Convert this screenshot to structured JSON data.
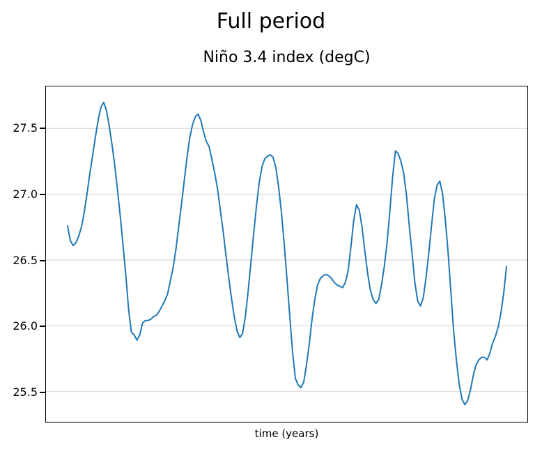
{
  "figure": {
    "suptitle": "Full period",
    "axes_title": "Niño 3.4 index (degC)",
    "xlabel": "time (years)"
  },
  "colors": {
    "line": "#1f77b4",
    "grid": "#dcdcdc",
    "spine": "#000000",
    "bottom_spine": "#7f7f7f",
    "background": "#ffffff"
  },
  "chart_data": {
    "type": "line",
    "title": "Full period",
    "subtitle": "Niño 3.4 index (degC)",
    "xlabel": "time (years)",
    "ylabel": "",
    "y_ticks": [
      25.5,
      26.0,
      26.5,
      27.0,
      27.5
    ],
    "y_tick_labels": [
      "25.5",
      "26.0",
      "26.5",
      "27.0",
      "27.5"
    ],
    "x_tick_labels": [],
    "ylim": [
      25.27,
      27.82
    ],
    "grid": "horizontal-only",
    "legend": "none",
    "x_start_frac": 0.0447,
    "x_end_frac": 0.9567,
    "series": [
      {
        "name": "Niño 3.4 index (degC)",
        "color": "#1f77b4",
        "values": [
          26.76,
          26.65,
          26.61,
          26.63,
          26.68,
          26.75,
          26.86,
          27.0,
          27.15,
          27.29,
          27.43,
          27.56,
          27.66,
          27.7,
          27.64,
          27.52,
          27.38,
          27.22,
          27.03,
          26.83,
          26.61,
          26.38,
          26.12,
          25.95,
          25.93,
          25.89,
          25.93,
          26.02,
          26.04,
          26.04,
          26.05,
          26.07,
          26.08,
          26.11,
          26.15,
          26.19,
          26.24,
          26.34,
          26.44,
          26.58,
          26.75,
          26.92,
          27.1,
          27.28,
          27.43,
          27.53,
          27.59,
          27.61,
          27.56,
          27.47,
          27.4,
          27.36,
          27.26,
          27.16,
          27.04,
          26.88,
          26.72,
          26.54,
          26.37,
          26.21,
          26.07,
          25.96,
          25.91,
          25.94,
          26.07,
          26.26,
          26.48,
          26.7,
          26.91,
          27.09,
          27.21,
          27.27,
          27.29,
          27.3,
          27.28,
          27.2,
          27.05,
          26.86,
          26.62,
          26.35,
          26.07,
          25.8,
          25.6,
          25.55,
          25.53,
          25.57,
          25.7,
          25.86,
          26.05,
          26.2,
          26.31,
          26.36,
          26.38,
          26.39,
          26.38,
          26.36,
          26.33,
          26.31,
          26.3,
          26.29,
          26.33,
          26.42,
          26.6,
          26.8,
          26.92,
          26.88,
          26.75,
          26.57,
          26.4,
          26.27,
          26.2,
          26.17,
          26.2,
          26.31,
          26.45,
          26.63,
          26.87,
          27.13,
          27.33,
          27.31,
          27.25,
          27.16,
          26.99,
          26.76,
          26.55,
          26.33,
          26.19,
          26.15,
          26.21,
          26.36,
          26.55,
          26.76,
          26.96,
          27.07,
          27.1,
          27.0,
          26.8,
          26.55,
          26.25,
          25.95,
          25.73,
          25.55,
          25.44,
          25.4,
          25.43,
          25.51,
          25.62,
          25.7,
          25.74,
          25.76,
          25.76,
          25.74,
          25.79,
          25.87,
          25.92,
          25.99,
          26.1,
          26.25,
          26.45
        ]
      }
    ]
  }
}
